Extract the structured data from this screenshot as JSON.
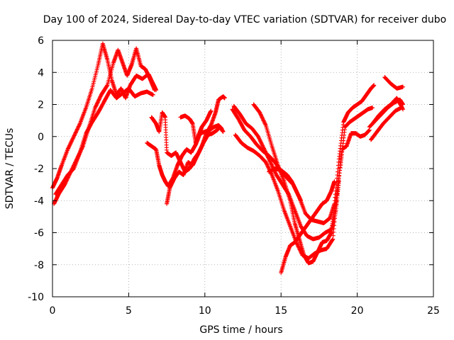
{
  "chart_data": {
    "type": "scatter",
    "title": "Day 100 of 2024, Sidereal Day-to-day VTEC variation (SDTVAR) for receiver dubo",
    "xlabel": "GPS time / hours",
    "ylabel": "SDTVAR / TECUs",
    "xlim": [
      0,
      25
    ],
    "ylim": [
      -10,
      6
    ],
    "xticks": [
      0,
      5,
      10,
      15,
      20,
      25
    ],
    "yticks": [
      -10,
      -8,
      -6,
      -4,
      -2,
      0,
      2,
      4,
      6
    ],
    "grid": true,
    "marker": "+",
    "color": "#ff0000",
    "series": [
      {
        "points": [
          [
            0.0,
            -3.2
          ],
          [
            0.3,
            -2.6
          ],
          [
            0.6,
            -1.8
          ],
          [
            1.0,
            -0.8
          ],
          [
            1.4,
            0.0
          ],
          [
            1.8,
            0.8
          ],
          [
            2.2,
            1.8
          ],
          [
            2.6,
            3.0
          ],
          [
            3.0,
            4.5
          ],
          [
            3.3,
            5.8
          ],
          [
            3.6,
            4.8
          ],
          [
            3.9,
            3.5
          ],
          [
            4.2,
            2.6
          ],
          [
            4.5,
            3.0
          ],
          [
            4.8,
            2.4
          ],
          [
            5.1,
            3.2
          ],
          [
            5.5,
            3.8
          ],
          [
            5.9,
            3.6
          ],
          [
            6.3,
            3.9
          ],
          [
            6.6,
            3.3
          ],
          [
            6.8,
            2.9
          ]
        ]
      },
      {
        "points": [
          [
            0.1,
            -4.2
          ],
          [
            0.4,
            -3.6
          ],
          [
            0.8,
            -3.0
          ],
          [
            1.2,
            -2.2
          ],
          [
            1.6,
            -1.4
          ],
          [
            2.0,
            -0.6
          ],
          [
            2.4,
            0.6
          ],
          [
            2.8,
            1.8
          ],
          [
            3.2,
            2.6
          ],
          [
            3.6,
            3.2
          ],
          [
            4.0,
            4.6
          ],
          [
            4.3,
            5.4
          ],
          [
            4.6,
            4.6
          ],
          [
            4.9,
            3.8
          ],
          [
            5.2,
            4.5
          ],
          [
            5.5,
            5.5
          ],
          [
            5.8,
            4.4
          ],
          [
            6.1,
            4.2
          ],
          [
            6.4,
            3.6
          ],
          [
            6.7,
            2.9
          ]
        ]
      },
      {
        "points": [
          [
            0.2,
            -3.6
          ],
          [
            0.6,
            -3.0
          ],
          [
            1.0,
            -2.4
          ],
          [
            1.4,
            -2.0
          ],
          [
            1.8,
            -1.0
          ],
          [
            2.2,
            0.2
          ],
          [
            2.6,
            0.9
          ],
          [
            3.0,
            1.5
          ],
          [
            3.4,
            2.2
          ],
          [
            3.8,
            2.9
          ],
          [
            4.2,
            2.4
          ],
          [
            4.6,
            2.7
          ],
          [
            5.0,
            3.0
          ],
          [
            5.4,
            2.5
          ],
          [
            5.8,
            2.7
          ],
          [
            6.2,
            2.8
          ],
          [
            6.6,
            2.6
          ]
        ]
      },
      {
        "points": [
          [
            6.5,
            1.2
          ],
          [
            6.8,
            0.8
          ],
          [
            7.0,
            0.3
          ],
          [
            7.2,
            1.5
          ],
          [
            7.4,
            1.2
          ],
          [
            7.5,
            -1.0
          ],
          [
            7.8,
            -1.2
          ],
          [
            8.1,
            -1.0
          ],
          [
            8.4,
            -1.6
          ],
          [
            8.7,
            -2.2
          ],
          [
            9.0,
            -2.0
          ],
          [
            9.3,
            -1.4
          ],
          [
            9.6,
            -1.0
          ],
          [
            9.9,
            -0.4
          ],
          [
            10.2,
            0.1
          ],
          [
            10.5,
            0.2
          ],
          [
            10.8,
            0.4
          ],
          [
            11.0,
            0.6
          ],
          [
            11.2,
            0.3
          ]
        ]
      },
      {
        "points": [
          [
            6.2,
            -0.4
          ],
          [
            6.5,
            -0.6
          ],
          [
            6.8,
            -0.8
          ],
          [
            7.0,
            -1.8
          ],
          [
            7.2,
            -2.4
          ],
          [
            7.4,
            -2.8
          ],
          [
            7.6,
            -3.1
          ],
          [
            7.9,
            -2.6
          ],
          [
            8.2,
            -1.8
          ],
          [
            8.5,
            -1.2
          ],
          [
            8.8,
            -0.8
          ],
          [
            9.1,
            -1.0
          ],
          [
            9.4,
            -0.5
          ],
          [
            9.7,
            0.2
          ],
          [
            10.0,
            0.3
          ],
          [
            10.3,
            0.4
          ],
          [
            10.6,
            0.6
          ],
          [
            10.9,
            0.7
          ],
          [
            11.1,
            0.5
          ]
        ]
      },
      {
        "points": [
          [
            7.5,
            -4.2
          ],
          [
            7.7,
            -3.2
          ],
          [
            8.0,
            -2.6
          ],
          [
            8.3,
            -2.2
          ],
          [
            8.6,
            -2.4
          ],
          [
            8.9,
            -1.6
          ],
          [
            9.2,
            -1.8
          ],
          [
            9.5,
            -1.2
          ],
          [
            9.8,
            -0.6
          ],
          [
            10.1,
            0.2
          ],
          [
            10.4,
            0.7
          ],
          [
            10.7,
            1.5
          ],
          [
            10.9,
            2.3
          ],
          [
            11.2,
            2.5
          ],
          [
            11.3,
            2.4
          ]
        ]
      },
      {
        "points": [
          [
            8.4,
            1.2
          ],
          [
            8.7,
            1.3
          ],
          [
            9.0,
            1.1
          ],
          [
            9.2,
            0.8
          ],
          [
            9.4,
            -0.4
          ],
          [
            9.6,
            0.1
          ],
          [
            9.8,
            0.6
          ],
          [
            10.1,
            1.0
          ],
          [
            10.4,
            1.6
          ]
        ]
      },
      {
        "points": [
          [
            11.8,
            1.7
          ],
          [
            12.2,
            1.1
          ],
          [
            12.6,
            0.4
          ],
          [
            13.0,
            0.0
          ],
          [
            13.4,
            -0.5
          ],
          [
            13.8,
            -0.9
          ],
          [
            14.2,
            -1.2
          ],
          [
            14.6,
            -1.6
          ],
          [
            15.0,
            -2.2
          ],
          [
            15.4,
            -2.6
          ],
          [
            15.8,
            -3.0
          ],
          [
            16.2,
            -3.8
          ],
          [
            16.6,
            -4.8
          ],
          [
            17.0,
            -5.2
          ],
          [
            17.4,
            -5.3
          ],
          [
            17.8,
            -5.4
          ],
          [
            18.2,
            -5.1
          ],
          [
            18.5,
            -4.2
          ],
          [
            18.8,
            -1.4
          ],
          [
            19.1,
            0.9
          ],
          [
            19.4,
            1.5
          ],
          [
            19.7,
            1.8
          ],
          [
            20.0,
            2.0
          ],
          [
            20.3,
            2.2
          ],
          [
            20.6,
            2.6
          ],
          [
            20.9,
            3.0
          ],
          [
            21.1,
            3.2
          ]
        ]
      },
      {
        "points": [
          [
            11.9,
            1.9
          ],
          [
            12.3,
            1.4
          ],
          [
            12.7,
            0.8
          ],
          [
            13.1,
            0.5
          ],
          [
            13.5,
            0.0
          ],
          [
            13.9,
            -0.8
          ],
          [
            14.3,
            -1.6
          ],
          [
            14.7,
            -2.4
          ],
          [
            15.1,
            -3.0
          ],
          [
            15.5,
            -3.6
          ],
          [
            15.9,
            -4.6
          ],
          [
            16.3,
            -5.6
          ],
          [
            16.7,
            -6.2
          ],
          [
            17.1,
            -6.4
          ],
          [
            17.5,
            -6.3
          ],
          [
            17.9,
            -6.0
          ],
          [
            18.3,
            -5.8
          ],
          [
            18.6,
            -4.0
          ],
          [
            18.9,
            -1.8
          ],
          [
            19.2,
            0.6
          ],
          [
            19.5,
            0.9
          ],
          [
            19.8,
            1.1
          ],
          [
            20.1,
            1.3
          ],
          [
            20.4,
            1.5
          ],
          [
            20.7,
            1.7
          ],
          [
            21.0,
            1.8
          ]
        ]
      },
      {
        "points": [
          [
            12.0,
            0.1
          ],
          [
            12.4,
            -0.4
          ],
          [
            12.8,
            -0.7
          ],
          [
            13.2,
            -0.9
          ],
          [
            13.6,
            -1.2
          ],
          [
            14.0,
            -1.6
          ],
          [
            14.4,
            -2.4
          ],
          [
            14.8,
            -3.4
          ],
          [
            15.2,
            -4.6
          ],
          [
            15.6,
            -5.6
          ],
          [
            16.0,
            -6.6
          ],
          [
            16.4,
            -7.4
          ],
          [
            16.8,
            -7.6
          ],
          [
            17.2,
            -7.3
          ],
          [
            17.6,
            -7.1
          ],
          [
            18.0,
            -7.0
          ],
          [
            18.4,
            -6.4
          ],
          [
            18.7,
            -3.4
          ],
          [
            19.0,
            -0.8
          ],
          [
            19.3,
            -0.6
          ],
          [
            19.6,
            0.2
          ],
          [
            19.9,
            0.2
          ],
          [
            20.2,
            0.0
          ],
          [
            20.5,
            0.1
          ],
          [
            20.8,
            0.4
          ]
        ]
      },
      {
        "points": [
          [
            13.2,
            2.0
          ],
          [
            13.6,
            1.5
          ],
          [
            14.0,
            0.7
          ],
          [
            14.4,
            -0.6
          ],
          [
            14.8,
            -1.8
          ],
          [
            15.2,
            -2.8
          ],
          [
            15.6,
            -4.0
          ],
          [
            15.9,
            -5.4
          ],
          [
            16.2,
            -6.4
          ],
          [
            16.5,
            -7.4
          ],
          [
            16.8,
            -7.9
          ],
          [
            17.1,
            -7.8
          ],
          [
            17.4,
            -7.2
          ],
          [
            17.7,
            -6.6
          ],
          [
            18.0,
            -6.5
          ],
          [
            18.3,
            -6.0
          ],
          [
            18.6,
            -4.6
          ],
          [
            18.8,
            -2.8
          ]
        ]
      },
      {
        "points": [
          [
            15.0,
            -8.5
          ],
          [
            15.3,
            -7.5
          ],
          [
            15.6,
            -6.8
          ],
          [
            15.9,
            -6.6
          ],
          [
            16.2,
            -6.2
          ],
          [
            16.5,
            -5.8
          ],
          [
            16.8,
            -5.4
          ],
          [
            17.1,
            -5.0
          ],
          [
            17.4,
            -4.6
          ],
          [
            17.7,
            -4.2
          ],
          [
            18.0,
            -4.0
          ],
          [
            18.3,
            -3.4
          ],
          [
            18.5,
            -2.8
          ]
        ]
      },
      {
        "points": [
          [
            14.2,
            -2.2
          ],
          [
            14.6,
            -2.0
          ],
          [
            15.0,
            -2.1
          ],
          [
            15.4,
            -2.4
          ],
          [
            15.7,
            -2.8
          ],
          [
            16.0,
            -3.4
          ],
          [
            16.3,
            -4.0
          ]
        ]
      },
      {
        "points": [
          [
            20.8,
            0.6
          ],
          [
            21.2,
            1.0
          ],
          [
            21.6,
            1.4
          ],
          [
            22.0,
            1.8
          ],
          [
            22.4,
            2.1
          ],
          [
            22.8,
            2.3
          ],
          [
            23.0,
            2.0
          ]
        ]
      },
      {
        "points": [
          [
            20.9,
            -0.2
          ],
          [
            21.3,
            0.3
          ],
          [
            21.7,
            0.8
          ],
          [
            22.1,
            1.2
          ],
          [
            22.5,
            1.6
          ],
          [
            22.9,
            1.8
          ]
        ]
      },
      {
        "points": [
          [
            21.0,
            0.8
          ],
          [
            21.4,
            1.3
          ],
          [
            21.8,
            1.7
          ],
          [
            22.2,
            2.0
          ],
          [
            22.6,
            2.4
          ],
          [
            23.0,
            1.7
          ]
        ]
      },
      {
        "points": [
          [
            21.8,
            3.7
          ],
          [
            22.2,
            3.3
          ],
          [
            22.6,
            3.0
          ],
          [
            23.0,
            3.1
          ]
        ]
      }
    ]
  }
}
